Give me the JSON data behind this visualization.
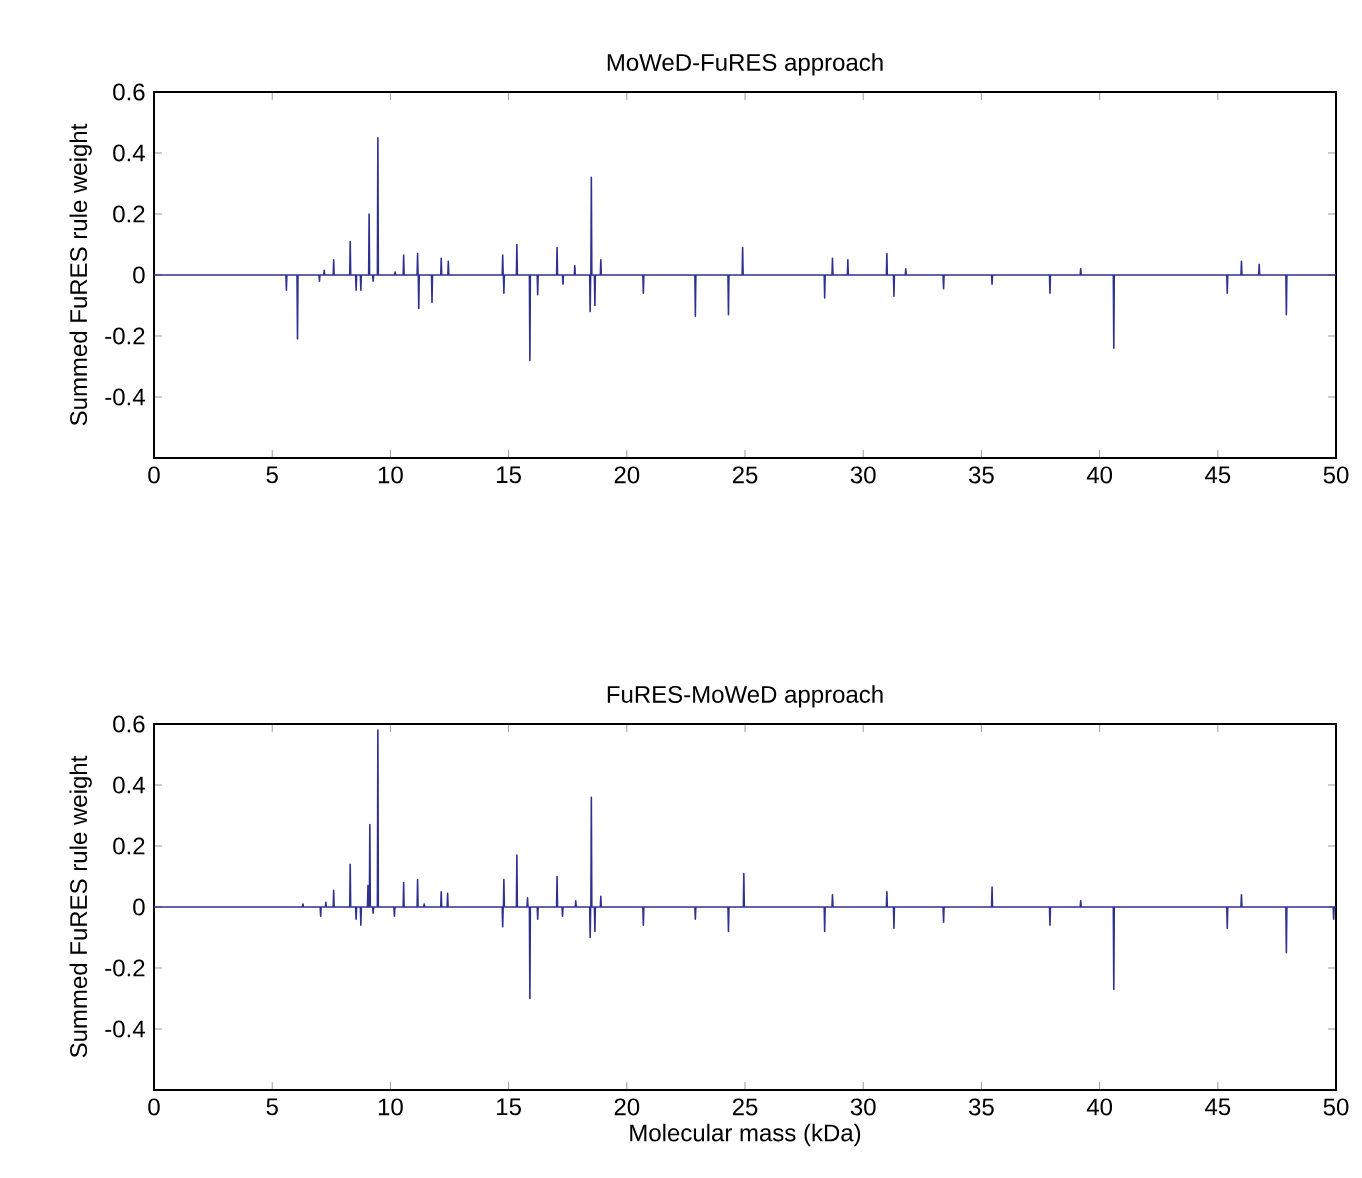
{
  "chart_data": [
    {
      "type": "line",
      "title": "MoWeD-FuRES approach",
      "ylabel": "Summed FuRES rule weight",
      "xlim": [
        0,
        50
      ],
      "ylim": [
        -0.6,
        0.6
      ],
      "xticks": [
        0,
        5,
        10,
        15,
        20,
        25,
        30,
        35,
        40,
        45,
        50
      ],
      "yticks": [
        -0.4,
        -0.2,
        0,
        0.2,
        0.4,
        0.6
      ],
      "color": "#2e3192",
      "x": [
        0,
        5.58,
        5.6,
        5.62,
        6.05,
        6.07,
        6.09,
        6.98,
        7.0,
        7.02,
        7.18,
        7.2,
        7.22,
        7.58,
        7.6,
        7.62,
        8.28,
        8.3,
        8.32,
        8.53,
        8.55,
        8.57,
        8.73,
        8.75,
        8.77,
        9.08,
        9.1,
        9.12,
        9.25,
        9.27,
        9.29,
        9.45,
        9.47,
        9.49,
        10.18,
        10.2,
        10.22,
        10.54,
        10.56,
        10.58,
        11.13,
        11.15,
        11.17,
        11.18,
        11.2,
        11.22,
        11.74,
        11.76,
        11.78,
        12.13,
        12.15,
        12.17,
        12.43,
        12.45,
        12.47,
        14.73,
        14.75,
        14.77,
        14.78,
        14.8,
        14.82,
        15.33,
        15.35,
        15.37,
        15.88,
        15.9,
        15.92,
        16.21,
        16.23,
        16.25,
        17.03,
        17.05,
        17.07,
        17.28,
        17.3,
        17.32,
        17.78,
        17.8,
        17.82,
        18.43,
        18.45,
        18.47,
        18.48,
        18.5,
        18.52,
        18.63,
        18.65,
        18.67,
        18.88,
        18.9,
        18.92,
        20.68,
        20.7,
        20.72,
        22.88,
        22.9,
        22.92,
        24.28,
        24.3,
        24.32,
        24.88,
        24.9,
        24.92,
        28.35,
        28.37,
        28.39,
        28.68,
        28.7,
        28.72,
        29.33,
        29.35,
        29.37,
        30.98,
        31.0,
        31.02,
        31.28,
        31.3,
        31.32,
        31.78,
        31.8,
        31.82,
        33.38,
        33.4,
        33.42,
        35.43,
        35.45,
        35.47,
        37.88,
        37.9,
        37.92,
        39.18,
        39.2,
        39.22,
        40.58,
        40.6,
        40.62,
        45.38,
        45.4,
        45.42,
        45.98,
        46.0,
        46.02,
        46.73,
        46.75,
        46.77,
        47.88,
        47.9,
        47.92,
        50
      ],
      "values": [
        0,
        0,
        -0.05,
        0,
        0,
        -0.21,
        0,
        0,
        -0.02,
        0,
        0,
        0.015,
        0,
        0,
        0.05,
        0,
        0,
        0.11,
        0,
        0,
        -0.05,
        0,
        0,
        -0.05,
        0,
        0,
        0.2,
        0,
        0,
        -0.02,
        0,
        0,
        0.45,
        0,
        0,
        0.01,
        0,
        0,
        0.065,
        0,
        0,
        0.07,
        0,
        0,
        -0.11,
        0,
        0,
        -0.09,
        0,
        0,
        0.055,
        0,
        0,
        0.045,
        0,
        0,
        0.065,
        0,
        0,
        -0.06,
        0,
        0,
        0.1,
        0,
        0,
        -0.28,
        0,
        0,
        -0.065,
        0,
        0,
        0.09,
        0,
        0,
        -0.03,
        0,
        0,
        0.03,
        0,
        0,
        -0.12,
        0,
        0,
        0.32,
        0,
        0,
        -0.1,
        0,
        0,
        0.05,
        0,
        0,
        -0.06,
        0,
        0,
        -0.135,
        0,
        0,
        -0.13,
        0,
        0,
        0.09,
        0,
        0,
        -0.075,
        0,
        0,
        0.055,
        0,
        0,
        0.05,
        0,
        0,
        0.07,
        0,
        0,
        -0.07,
        0,
        0,
        0.02,
        0,
        0,
        -0.045,
        0,
        0,
        -0.03,
        0,
        0,
        -0.06,
        0,
        0,
        0.02,
        0,
        0,
        -0.24,
        0,
        0,
        -0.06,
        0,
        0,
        0.045,
        0,
        0,
        0.035,
        0,
        0,
        -0.13,
        0,
        0
      ]
    },
    {
      "type": "line",
      "title": "FuRES-MoWeD approach",
      "ylabel": "Summed FuRES rule weight",
      "xlabel": "Molecular mass (kDa)",
      "xlim": [
        0,
        50
      ],
      "ylim": [
        -0.6,
        0.6
      ],
      "xticks": [
        0,
        5,
        10,
        15,
        20,
        25,
        30,
        35,
        40,
        45,
        50
      ],
      "yticks": [
        -0.4,
        -0.2,
        0,
        0.2,
        0.4,
        0.6
      ],
      "color": "#2e3192",
      "x": [
        0,
        6.28,
        6.3,
        6.32,
        7.03,
        7.05,
        7.07,
        7.25,
        7.27,
        7.29,
        7.58,
        7.6,
        7.62,
        8.28,
        8.3,
        8.32,
        8.53,
        8.55,
        8.57,
        8.73,
        8.75,
        8.77,
        9.03,
        9.05,
        9.07,
        9.11,
        9.13,
        9.15,
        9.25,
        9.27,
        9.29,
        9.45,
        9.47,
        9.49,
        10.15,
        10.17,
        10.19,
        10.54,
        10.56,
        10.58,
        11.13,
        11.15,
        11.17,
        11.41,
        11.43,
        11.45,
        12.13,
        12.15,
        12.17,
        12.4,
        12.42,
        12.44,
        14.73,
        14.75,
        14.77,
        14.78,
        14.8,
        14.82,
        15.33,
        15.35,
        15.37,
        15.78,
        15.8,
        15.82,
        15.88,
        15.9,
        15.92,
        16.21,
        16.23,
        16.25,
        17.03,
        17.05,
        17.07,
        17.26,
        17.28,
        17.3,
        17.82,
        17.84,
        17.86,
        18.43,
        18.45,
        18.47,
        18.48,
        18.5,
        18.52,
        18.63,
        18.65,
        18.67,
        18.88,
        18.9,
        18.92,
        20.68,
        20.7,
        20.72,
        22.88,
        22.9,
        22.92,
        24.28,
        24.3,
        24.32,
        24.93,
        24.95,
        24.97,
        28.35,
        28.37,
        28.39,
        28.68,
        28.7,
        28.72,
        30.98,
        31.0,
        31.02,
        31.28,
        31.3,
        31.32,
        33.38,
        33.4,
        33.42,
        35.43,
        35.45,
        35.47,
        37.88,
        37.9,
        37.92,
        39.18,
        39.2,
        39.22,
        40.58,
        40.6,
        40.62,
        45.38,
        45.4,
        45.42,
        45.98,
        46.0,
        46.02,
        47.88,
        47.9,
        47.92,
        49.88,
        49.9,
        49.92,
        50
      ],
      "values": [
        0,
        0,
        0.01,
        0,
        0,
        -0.03,
        0,
        0,
        0.015,
        0,
        0,
        0.055,
        0,
        0,
        0.14,
        0,
        0,
        -0.04,
        0,
        0,
        -0.06,
        0,
        0,
        0.07,
        0,
        0,
        0.27,
        0,
        0,
        -0.02,
        0,
        0,
        0.58,
        0,
        0,
        -0.03,
        0,
        0,
        0.08,
        0,
        0,
        0.09,
        0,
        0,
        0.01,
        0,
        0,
        0.05,
        0,
        0,
        0.045,
        0,
        0,
        -0.065,
        0,
        0,
        0.09,
        0,
        0,
        0.17,
        0,
        0,
        0.03,
        0,
        0,
        -0.3,
        0,
        0,
        -0.04,
        0,
        0,
        0.1,
        0,
        0,
        -0.03,
        0,
        0,
        0.02,
        0,
        0,
        -0.1,
        0,
        0,
        0.36,
        0,
        0,
        -0.08,
        0,
        0,
        0.035,
        0,
        0,
        -0.06,
        0,
        0,
        -0.04,
        0,
        0,
        -0.08,
        0,
        0,
        0.11,
        0,
        0,
        -0.08,
        0,
        0,
        0.04,
        0,
        0,
        0.05,
        0,
        0,
        -0.07,
        0,
        0,
        -0.05,
        0,
        0,
        0.065,
        0,
        0,
        -0.06,
        0,
        0,
        0.02,
        0,
        0,
        -0.27,
        0,
        0,
        -0.07,
        0,
        0,
        0.04,
        0,
        0,
        -0.15,
        0,
        0,
        -0.04,
        0,
        0
      ]
    }
  ]
}
